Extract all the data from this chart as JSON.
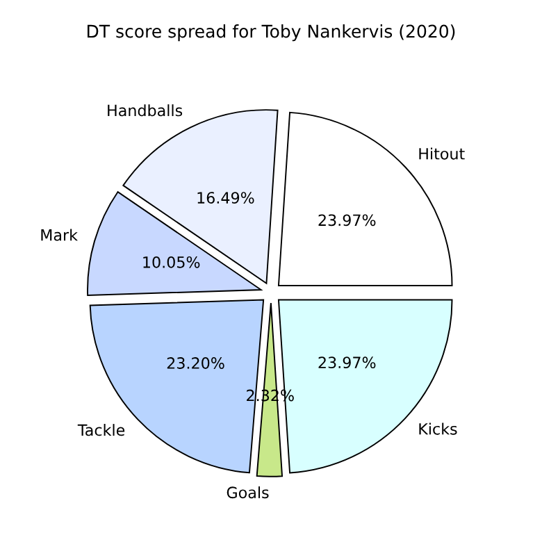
{
  "chart_data": {
    "type": "pie",
    "title": "DT score spread for Toby Nankervis (2020)",
    "categories": [
      "Hitout",
      "Handballs",
      "Mark",
      "Tackle",
      "Goals",
      "Kicks"
    ],
    "values": [
      23.97,
      16.49,
      10.05,
      23.2,
      2.32,
      23.97
    ],
    "value_labels": [
      "23.97%",
      "16.49%",
      "10.05%",
      "23.20%",
      "2.32%",
      "23.97%"
    ],
    "colors": [
      "#ffffff",
      "#eaf0ff",
      "#c8d8ff",
      "#b8d4ff",
      "#c8e88a",
      "#d8ffff"
    ]
  }
}
